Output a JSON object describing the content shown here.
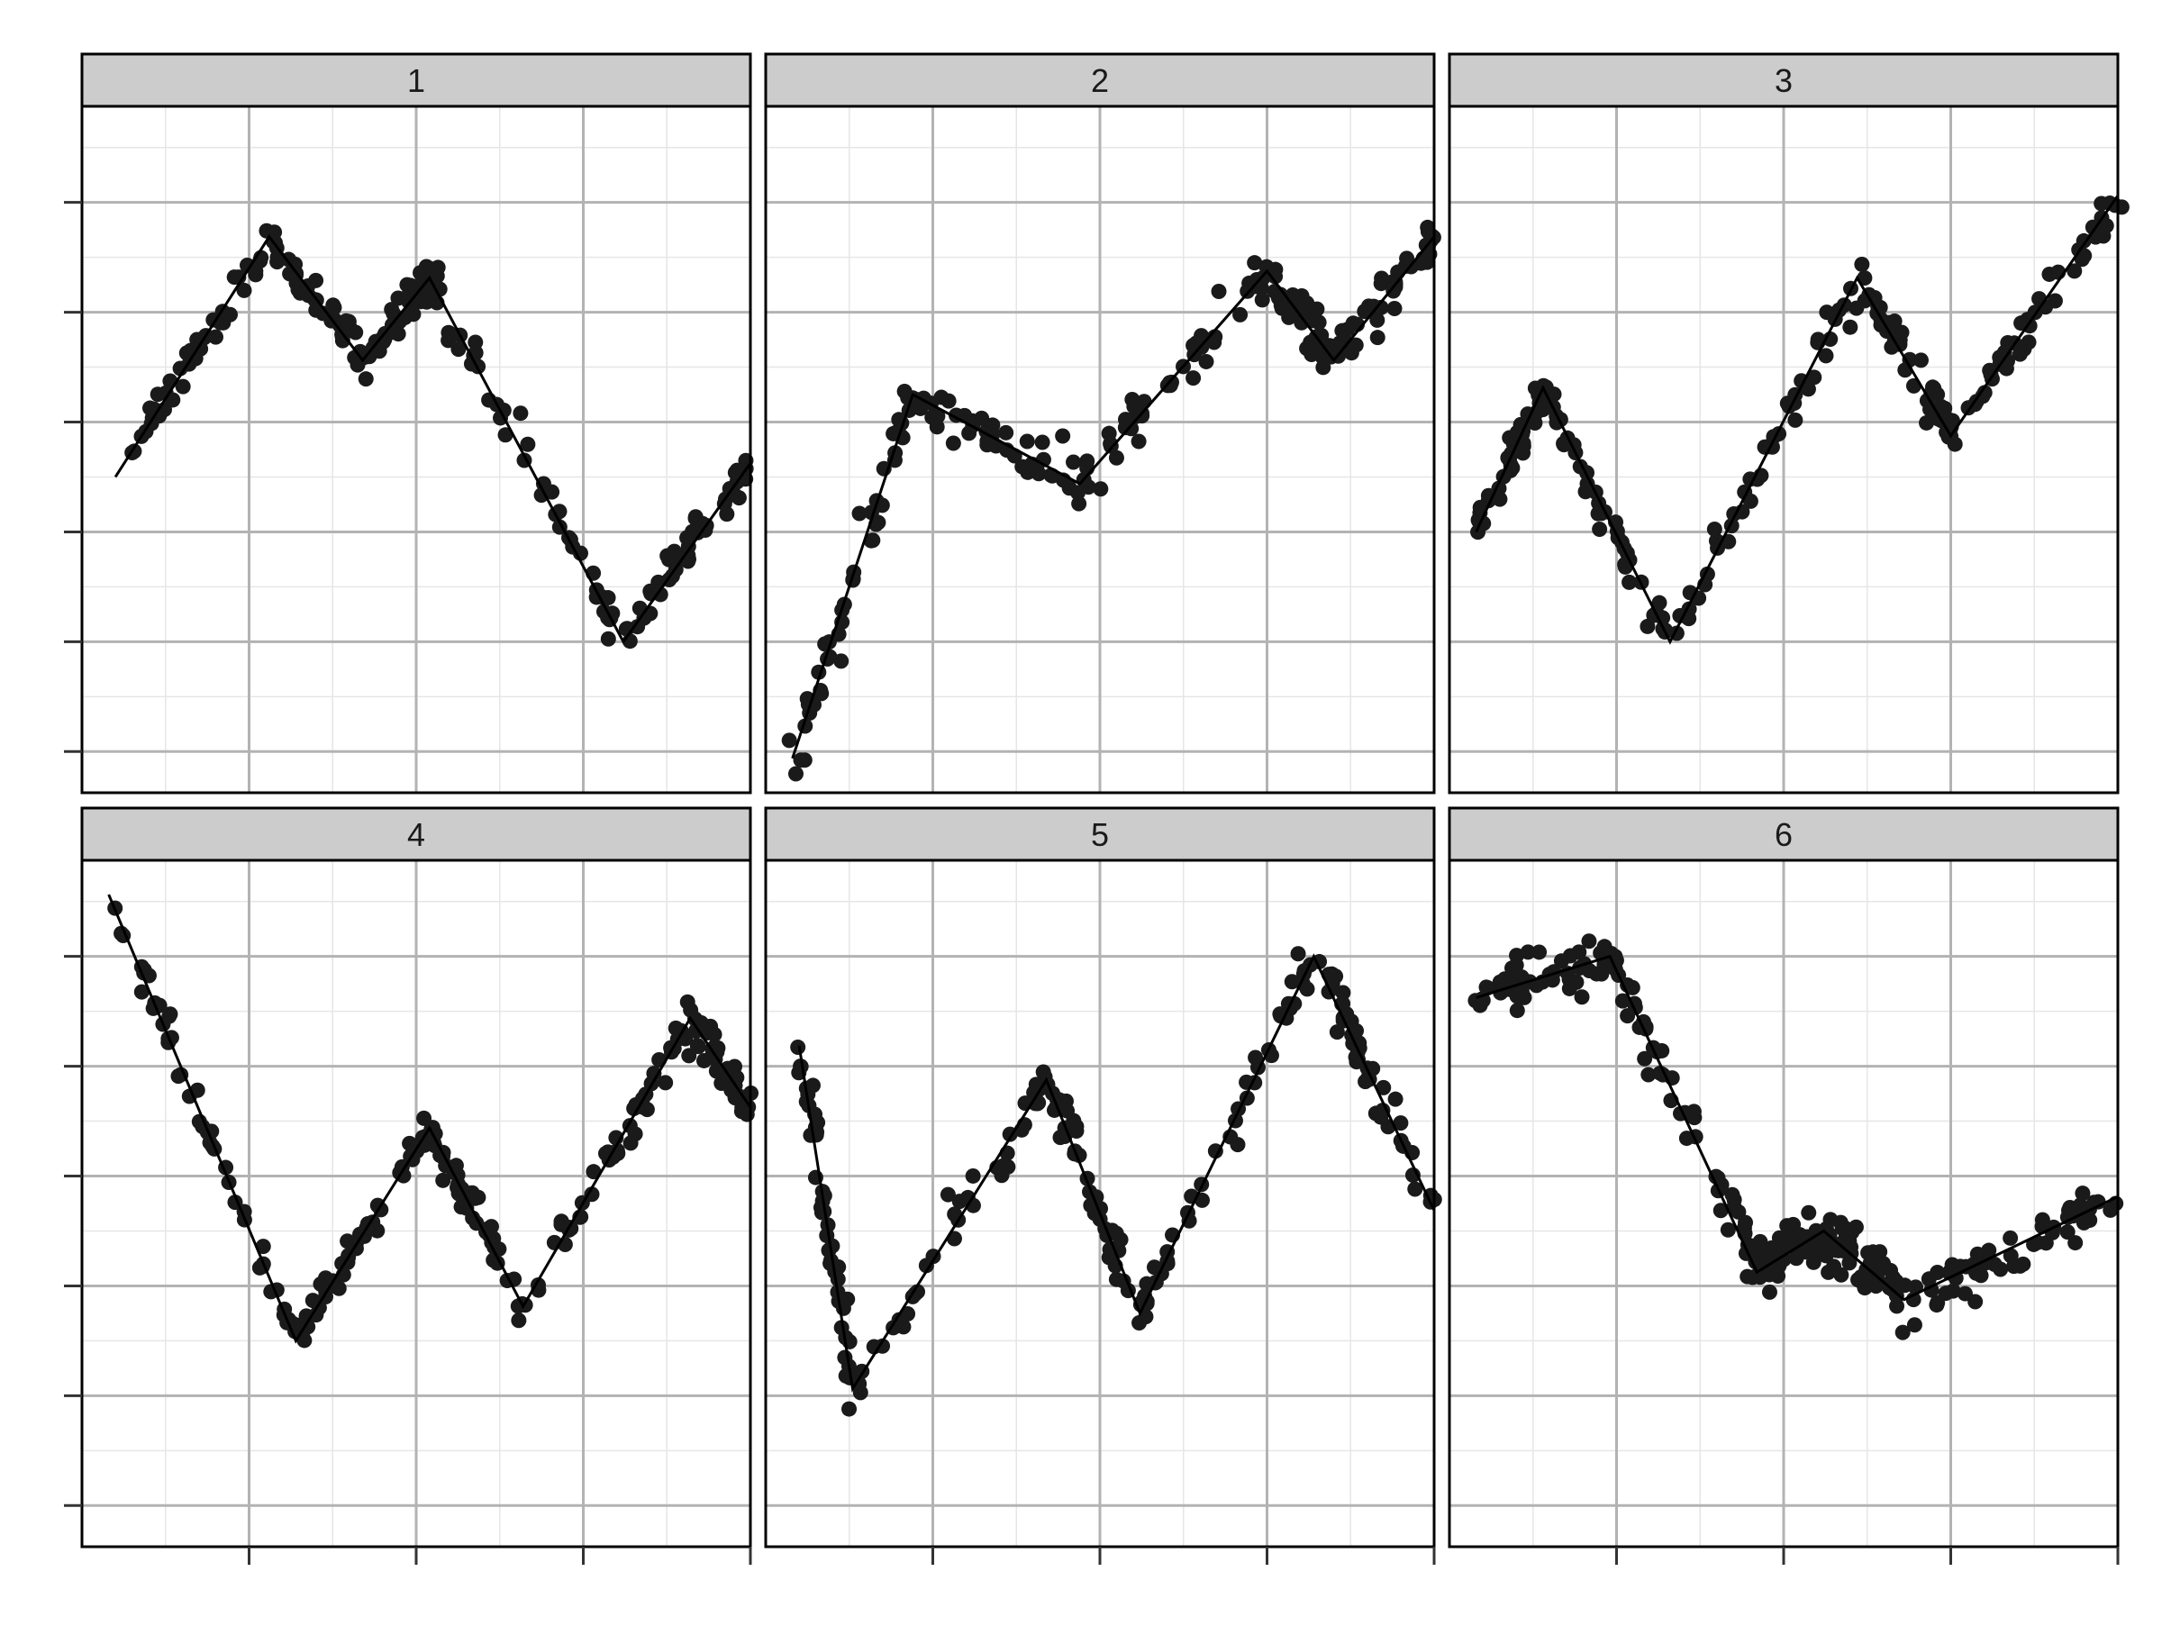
{
  "chart_data": {
    "type": "scatter",
    "title": "",
    "xlabel": "",
    "ylabel": "",
    "grid": true,
    "facet_strip_fill": "#cccccc",
    "point_color": "#1a1a1a",
    "line_color": "#000000",
    "panel_border_color": "#000000",
    "grid_major_color": "#b3b3b3",
    "grid_minor_color": "#e6e6e6",
    "xlim": [
      0,
      1
    ],
    "ylim": [
      0,
      1
    ],
    "x_ticks": [
      0.25,
      0.5,
      0.75,
      1.0
    ],
    "y_ticks_top": [
      0.06,
      0.22,
      0.38,
      0.54,
      0.7,
      0.86
    ],
    "y_ticks_bottom": [
      0.06,
      0.22,
      0.38,
      0.54,
      0.7,
      0.86
    ],
    "panels": [
      {
        "label": "1",
        "trend": [
          [
            0.05,
            0.46
          ],
          [
            0.28,
            0.81
          ],
          [
            0.42,
            0.63
          ],
          [
            0.52,
            0.75
          ],
          [
            0.81,
            0.22
          ],
          [
            1.0,
            0.48
          ]
        ],
        "points_per_segment": 45,
        "noise": 0.014
      },
      {
        "label": "2",
        "trend": [
          [
            0.04,
            0.05
          ],
          [
            0.22,
            0.58
          ],
          [
            0.47,
            0.45
          ],
          [
            0.75,
            0.76
          ],
          [
            0.85,
            0.63
          ],
          [
            1.0,
            0.81
          ]
        ],
        "points_per_segment": 45,
        "noise": 0.018
      },
      {
        "label": "3",
        "trend": [
          [
            0.04,
            0.38
          ],
          [
            0.14,
            0.59
          ],
          [
            0.33,
            0.22
          ],
          [
            0.61,
            0.75
          ],
          [
            0.75,
            0.52
          ],
          [
            1.0,
            0.87
          ]
        ],
        "points_per_segment": 45,
        "noise": 0.014
      },
      {
        "label": "4",
        "trend": [
          [
            0.04,
            0.95
          ],
          [
            0.32,
            0.3
          ],
          [
            0.52,
            0.61
          ],
          [
            0.66,
            0.35
          ],
          [
            0.91,
            0.77
          ],
          [
            1.0,
            0.64
          ]
        ],
        "points_per_segment": 45,
        "noise": 0.014
      },
      {
        "label": "5",
        "trend": [
          [
            0.05,
            0.73
          ],
          [
            0.13,
            0.23
          ],
          [
            0.42,
            0.68
          ],
          [
            0.56,
            0.34
          ],
          [
            0.82,
            0.86
          ],
          [
            1.0,
            0.49
          ]
        ],
        "points_per_segment": 45,
        "noise": 0.016
      },
      {
        "label": "6",
        "trend": [
          [
            0.04,
            0.8
          ],
          [
            0.24,
            0.86
          ],
          [
            0.46,
            0.4
          ],
          [
            0.56,
            0.46
          ],
          [
            0.68,
            0.36
          ],
          [
            1.0,
            0.51
          ]
        ],
        "points_per_segment": 55,
        "noise": 0.02
      }
    ]
  }
}
